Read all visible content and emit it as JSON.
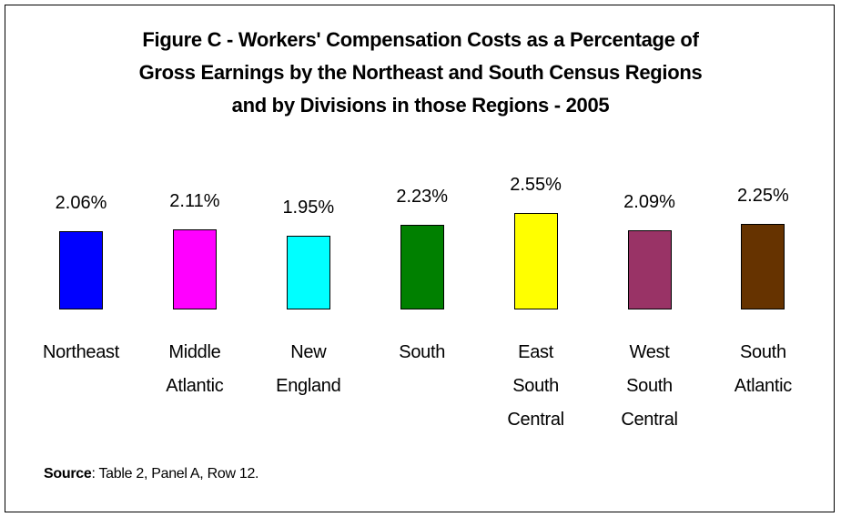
{
  "chart_data": {
    "type": "bar",
    "title": "Figure C - Workers' Compensation Costs as a Percentage of Gross Earnings by the Northeast and South Census Regions and by Divisions in those Regions - 2005",
    "categories": [
      "Northeast",
      "Middle Atlantic",
      "New England",
      "South",
      "East South Central",
      "West South Central",
      "South Atlantic"
    ],
    "values": [
      2.06,
      2.11,
      1.95,
      2.23,
      2.55,
      2.09,
      2.25
    ],
    "value_labels": [
      "2.06%",
      "2.11%",
      "1.95%",
      "2.23%",
      "2.55%",
      "2.09%",
      "2.25%"
    ],
    "colors": [
      "#0000ff",
      "#ff00ff",
      "#00ffff",
      "#008000",
      "#ffff00",
      "#993366",
      "#663300"
    ],
    "source_label": "Source",
    "source_text": ": Table 2, Panel A, Row 12."
  }
}
